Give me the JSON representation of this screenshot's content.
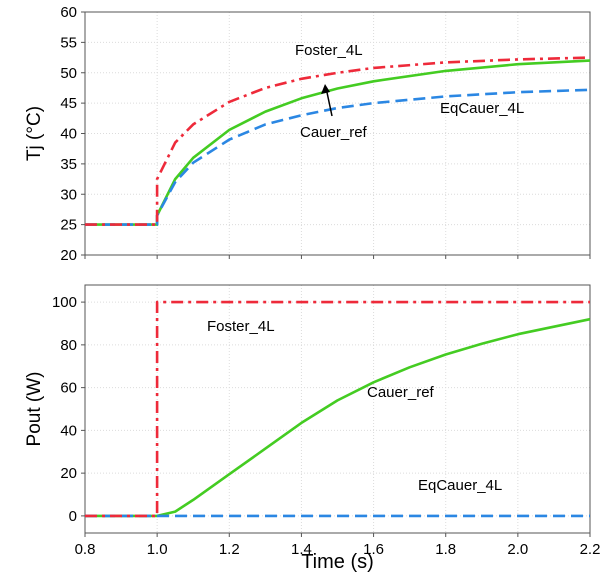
{
  "chart_data": [
    {
      "type": "line",
      "xlabel": "",
      "ylabel": "Tj (°C)",
      "xlim": [
        0.8,
        2.2
      ],
      "ylim": [
        20,
        60
      ],
      "xticks": [
        0.8,
        1.0,
        1.2,
        1.4,
        1.6,
        1.8,
        2.0,
        2.2
      ],
      "yticks": [
        20,
        25,
        30,
        35,
        40,
        45,
        50,
        55,
        60
      ],
      "yticklabels": [
        "20",
        "25",
        "30",
        "35",
        "40",
        "45",
        "50",
        "55",
        "60"
      ],
      "grid": true,
      "series": [
        {
          "name": "Foster_4L",
          "color": "#ee2a3a",
          "style": "dashdot",
          "x": [
            0.8,
            1.0,
            1.0,
            1.05,
            1.1,
            1.2,
            1.3,
            1.4,
            1.5,
            1.6,
            1.8,
            2.0,
            2.2
          ],
          "y": [
            25,
            25,
            32.5,
            38.5,
            41.5,
            45.2,
            47.5,
            49.0,
            50.0,
            50.8,
            51.7,
            52.2,
            52.5
          ]
        },
        {
          "name": "Cauer_ref",
          "color": "#44cc22",
          "style": "solid",
          "x": [
            0.8,
            1.0,
            1.0,
            1.05,
            1.1,
            1.2,
            1.3,
            1.4,
            1.5,
            1.6,
            1.8,
            2.0,
            2.2
          ],
          "y": [
            25,
            25,
            26.5,
            32.5,
            36.0,
            40.6,
            43.6,
            45.8,
            47.4,
            48.6,
            50.3,
            51.4,
            52.0
          ]
        },
        {
          "name": "EqCauer_4L",
          "color": "#2b87e3",
          "style": "dashed",
          "x": [
            0.8,
            1.0,
            1.0,
            1.05,
            1.1,
            1.2,
            1.3,
            1.4,
            1.5,
            1.6,
            1.8,
            2.0,
            2.2
          ],
          "y": [
            25,
            25,
            26.5,
            32.0,
            35.2,
            39.0,
            41.5,
            43.0,
            44.2,
            45.0,
            46.1,
            46.8,
            47.2
          ]
        }
      ],
      "annotations": [
        {
          "text": "Foster_4L"
        },
        {
          "text": "Cauer_ref"
        },
        {
          "text": "EqCauer_4L"
        }
      ]
    },
    {
      "type": "line",
      "xlabel": "Time (s)",
      "ylabel": "Pout (W)",
      "xlim": [
        0.8,
        2.2
      ],
      "ylim": [
        -8,
        108
      ],
      "xticks": [
        0.8,
        1.0,
        1.2,
        1.4,
        1.6,
        1.8,
        2.0,
        2.2
      ],
      "xticklabels": [
        "0.8",
        "1.0",
        "1.2",
        "1.4",
        "1.6",
        "1.8",
        "2.0",
        "2.2"
      ],
      "yticks": [
        0,
        20,
        40,
        60,
        80,
        100
      ],
      "yticklabels": [
        "0",
        "20",
        "40",
        "60",
        "80",
        "100"
      ],
      "grid": true,
      "series": [
        {
          "name": "Foster_4L",
          "color": "#ee2a3a",
          "style": "dashdot",
          "x": [
            0.8,
            1.0,
            1.0,
            2.2
          ],
          "y": [
            0,
            0,
            100,
            100
          ]
        },
        {
          "name": "Cauer_ref",
          "color": "#44cc22",
          "style": "solid",
          "x": [
            0.8,
            1.0,
            1.05,
            1.1,
            1.2,
            1.3,
            1.4,
            1.5,
            1.6,
            1.7,
            1.8,
            1.9,
            2.0,
            2.1,
            2.2
          ],
          "y": [
            0,
            0,
            2.0,
            7.5,
            19.5,
            31.5,
            43.5,
            54.0,
            62.5,
            69.5,
            75.5,
            80.5,
            85.0,
            88.5,
            92.0
          ]
        },
        {
          "name": "EqCauer_4L",
          "color": "#2b87e3",
          "style": "dashed",
          "x": [
            0.8,
            2.2
          ],
          "y": [
            0,
            0
          ]
        }
      ],
      "annotations": [
        {
          "text": "Foster_4L"
        },
        {
          "text": "Cauer_ref"
        },
        {
          "text": "EqCauer_4L"
        }
      ]
    }
  ]
}
